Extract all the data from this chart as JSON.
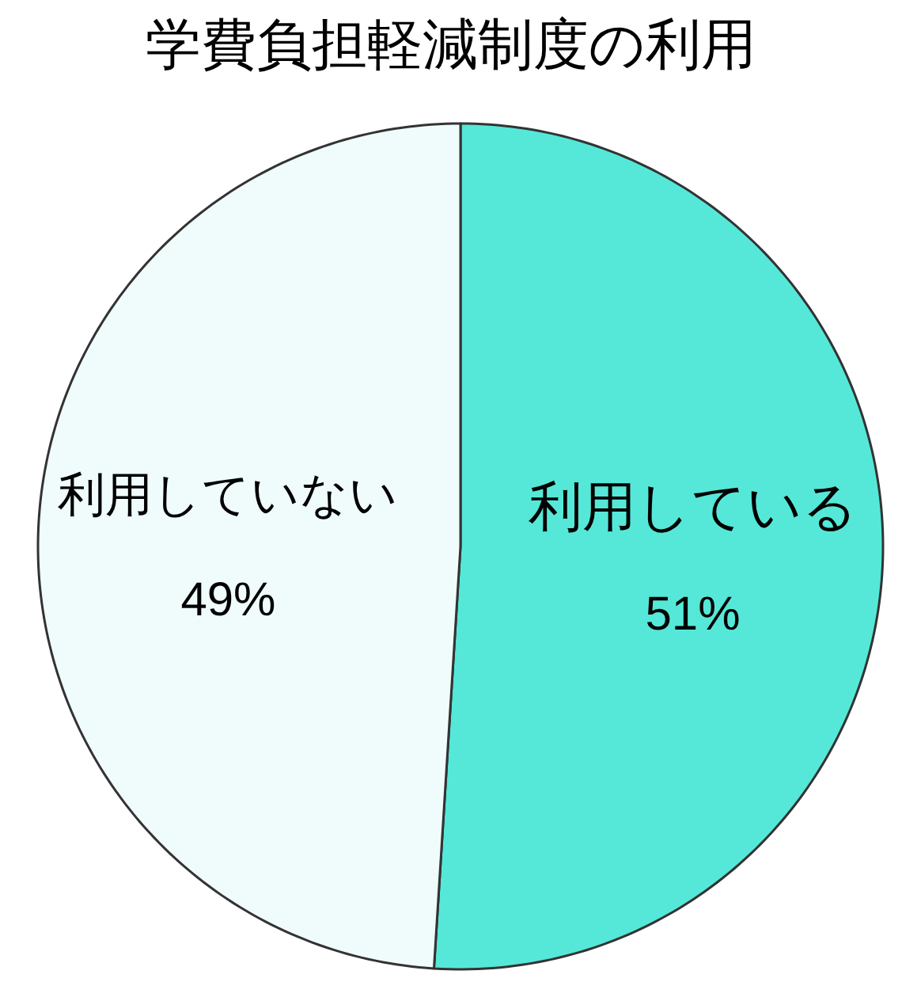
{
  "chart_data": {
    "type": "pie",
    "title": "学費負担軽減制度の利用",
    "categories": [
      "利用している",
      "利用していない"
    ],
    "values": [
      51,
      49
    ],
    "value_labels": [
      "51%",
      "49%"
    ],
    "colors": [
      "#55e8d8",
      "#f0fcfc"
    ]
  }
}
